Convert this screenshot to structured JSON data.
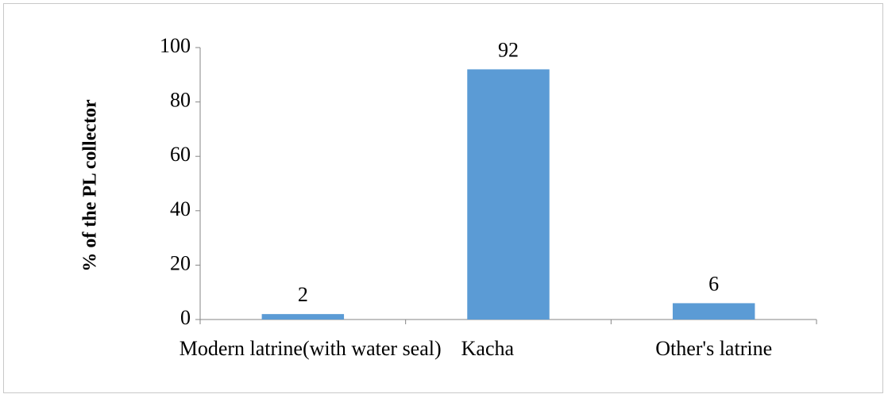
{
  "chart_data": {
    "type": "bar",
    "categories": [
      "Modern latrine(with water seal)",
      "Kacha",
      "Other's latrine"
    ],
    "values": [
      2,
      92,
      6
    ],
    "data_labels": [
      "2",
      "92",
      "6"
    ],
    "title": "",
    "xlabel": "",
    "ylabel": "% of the PL collector",
    "ylim": [
      0,
      100
    ],
    "yticks": [
      0,
      20,
      40,
      60,
      80,
      100
    ],
    "grid": false,
    "legend": "none",
    "bar_color": "#5b9bd5"
  }
}
